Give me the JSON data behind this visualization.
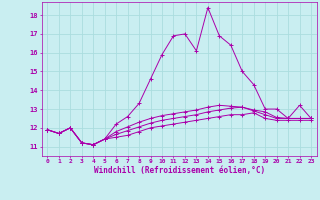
{
  "xlabel": "Windchill (Refroidissement éolien,°C)",
  "xlim": [
    -0.5,
    23.5
  ],
  "ylim": [
    10.5,
    18.7
  ],
  "yticks": [
    11,
    12,
    13,
    14,
    15,
    16,
    17,
    18
  ],
  "xticks": [
    0,
    1,
    2,
    3,
    4,
    5,
    6,
    7,
    8,
    9,
    10,
    11,
    12,
    13,
    14,
    15,
    16,
    17,
    18,
    19,
    20,
    21,
    22,
    23
  ],
  "background_color": "#c9eef1",
  "grid_color": "#aadddf",
  "line_color": "#aa00aa",
  "hours": [
    0,
    1,
    2,
    3,
    4,
    5,
    6,
    7,
    8,
    9,
    10,
    11,
    12,
    13,
    14,
    15,
    16,
    17,
    18,
    19,
    20,
    21,
    22,
    23
  ],
  "main_line": [
    11.9,
    11.7,
    12.0,
    11.2,
    11.1,
    11.4,
    12.2,
    12.6,
    13.3,
    14.6,
    15.9,
    16.9,
    17.0,
    16.1,
    18.4,
    16.9,
    16.4,
    15.0,
    14.3,
    13.0,
    13.0,
    12.5,
    13.2,
    12.5
  ],
  "line2": [
    11.9,
    11.7,
    12.0,
    11.2,
    11.1,
    11.4,
    11.5,
    11.6,
    11.8,
    12.0,
    12.1,
    12.2,
    12.3,
    12.4,
    12.5,
    12.6,
    12.7,
    12.7,
    12.8,
    12.5,
    12.4,
    12.4,
    12.4,
    12.4
  ],
  "line3": [
    11.9,
    11.7,
    12.0,
    11.2,
    11.1,
    11.4,
    11.65,
    11.85,
    12.05,
    12.25,
    12.4,
    12.5,
    12.6,
    12.7,
    12.85,
    12.95,
    13.05,
    13.1,
    12.9,
    12.7,
    12.5,
    12.5,
    12.5,
    12.5
  ],
  "line4": [
    11.9,
    11.7,
    12.0,
    11.2,
    11.1,
    11.4,
    11.8,
    12.05,
    12.3,
    12.5,
    12.65,
    12.75,
    12.85,
    12.95,
    13.1,
    13.2,
    13.15,
    13.1,
    12.95,
    12.85,
    12.55,
    12.5,
    12.5,
    12.5
  ]
}
